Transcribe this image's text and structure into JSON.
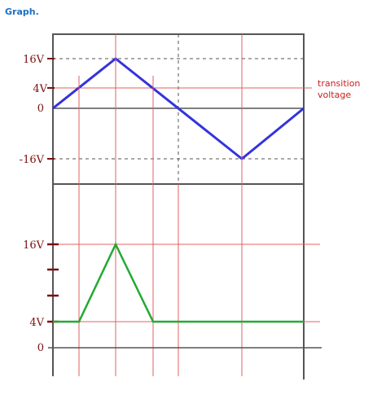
{
  "title": "Graph.",
  "top_plot": {
    "labels": [
      "16V",
      "4V",
      "0",
      "-16V"
    ],
    "annotation": [
      "transition",
      "voltage"
    ]
  },
  "bottom_plot": {
    "labels": [
      "16V",
      "4V",
      "0"
    ]
  },
  "colors": {
    "input_wave": "#3333dd",
    "output_wave": "#22aa33",
    "reference_lines": "#e06060",
    "axis": "#555555",
    "label_text": "#7a1010",
    "annotation": "#c81e1e",
    "title": "#1a6fc4"
  }
}
